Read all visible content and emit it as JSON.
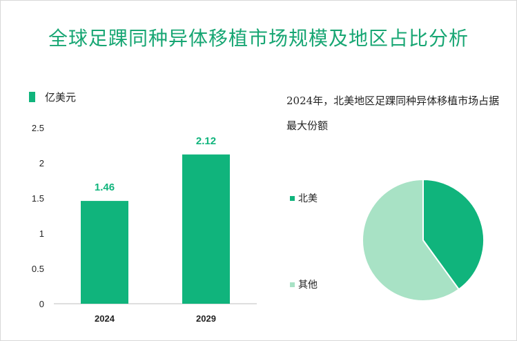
{
  "title": "全球足踝同种异体移植市场规模及地区占比分析",
  "unit_label": "亿美元",
  "pie_note": "2024年，北美地区足踝同种异体移植市场占据最大份额",
  "colors": {
    "accent": "#10b47c",
    "light": "#a8e2c5",
    "title": "#17a673"
  },
  "chart_data": [
    {
      "type": "bar",
      "categories": [
        "2024",
        "2029"
      ],
      "values": [
        1.46,
        2.12
      ],
      "data_labels": [
        "1.46",
        "2.12"
      ],
      "ylim": [
        0,
        2.5
      ],
      "yticks": [
        "0",
        "0.5",
        "1",
        "1.5",
        "2",
        "2.5"
      ],
      "legend": "亿美元",
      "grid": false
    },
    {
      "type": "pie",
      "labels": [
        "北美",
        "其他"
      ],
      "values": [
        0.4,
        0.6
      ],
      "colors": [
        "#10b47c",
        "#a8e2c5"
      ],
      "legend_placement": "left"
    }
  ]
}
